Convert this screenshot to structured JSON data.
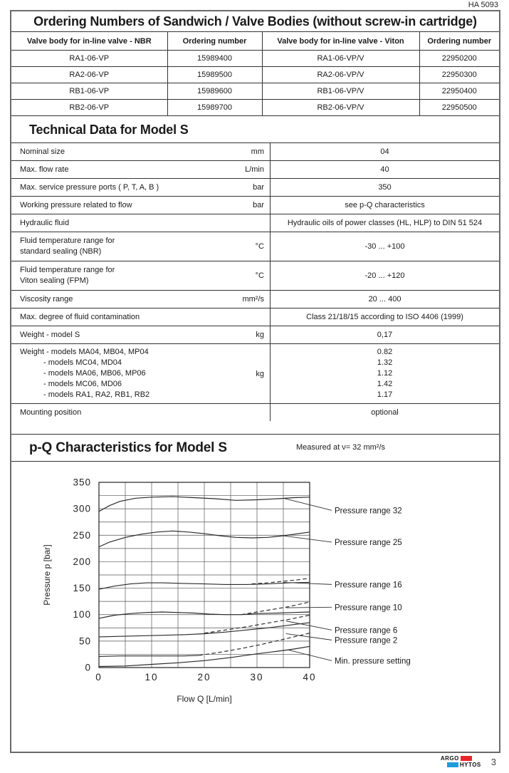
{
  "doc": {
    "number": "HA 5093",
    "page": "3",
    "brand_top": "ARGO",
    "brand_bottom": "HYTOS",
    "brand_red": "#e8262a",
    "brand_blue": "#1e9cd7"
  },
  "ordering": {
    "title": "Ordering Numbers of Sandwich / Valve Bodies (without screw-in cartridge)",
    "columns": [
      "Valve body for in-line valve - NBR",
      "Ordering number",
      "Valve body for in-line valve - Viton",
      "Ordering number"
    ],
    "rows": [
      [
        "RA1-06-VP",
        "15989400",
        "RA1-06-VP/V",
        "22950200"
      ],
      [
        "RA2-06-VP",
        "15989500",
        "RA2-06-VP/V",
        "22950300"
      ],
      [
        "RB1-06-VP",
        "15989600",
        "RB1-06-VP/V",
        "22950400"
      ],
      [
        "RB2-06-VP",
        "15989700",
        "RB2-06-VP/V",
        "22950500"
      ]
    ]
  },
  "technical": {
    "title": "Technical Data for Model S",
    "rows": [
      {
        "lines": [
          "Nominal size"
        ],
        "unit": "mm",
        "values": [
          "04"
        ]
      },
      {
        "lines": [
          "Max. flow rate"
        ],
        "unit": "L/min",
        "values": [
          "40"
        ]
      },
      {
        "lines": [
          "Max. service pressure ports ( P, T, A, B )"
        ],
        "unit": "bar",
        "values": [
          "350"
        ]
      },
      {
        "lines": [
          "Working pressure related to flow"
        ],
        "unit": "bar",
        "values": [
          "see p-Q characteristics"
        ]
      },
      {
        "lines": [
          "Hydraulic fluid"
        ],
        "unit": "",
        "values": [
          "Hydraulic oils of power classes (HL, HLP) to DIN 51 524"
        ]
      },
      {
        "lines": [
          "Fluid temperature range for",
          "standard sealing (NBR)"
        ],
        "unit": "°C",
        "values": [
          "-30 ... +100"
        ]
      },
      {
        "lines": [
          "Fluid temperature range for",
          "Viton sealing (FPM)"
        ],
        "unit": "°C",
        "values": [
          "-20 ... +120"
        ]
      },
      {
        "lines": [
          "Viscosity range"
        ],
        "unit": "mm²/s",
        "values": [
          "20 ... 400"
        ]
      },
      {
        "lines": [
          "Max. degree of fluid contamination"
        ],
        "unit": "",
        "values": [
          "Class 21/18/15 according to ISO 4406 (1999)"
        ]
      },
      {
        "lines": [
          "Weight - model S"
        ],
        "unit": "kg",
        "values": [
          "0,17"
        ]
      },
      {
        "lines": [
          "Weight - models MA04, MB04, MP04",
          "- models MC04, MD04",
          "- models MA06, MB06, MP06",
          "- models MC06, MD06",
          "- models RA1, RA2, RB1, RB2"
        ],
        "unit": "kg",
        "values": [
          "0.82",
          "1.32",
          "1.12",
          "1.42",
          "1.17"
        ]
      },
      {
        "lines": [
          "Mounting position"
        ],
        "unit": "",
        "values": [
          "optional"
        ]
      }
    ]
  },
  "pq": {
    "title": "p-Q Characteristics for Model S",
    "note": "Measured at ν= 32 mm²/s"
  },
  "chart_data": {
    "type": "line",
    "title": "p-Q Characteristics for Model S",
    "note": "Measured at ν= 32 mm²/s",
    "xlabel": "Flow Q [L/min]",
    "ylabel": "Pressure p [bar]",
    "xlim": [
      0,
      40
    ],
    "ylim": [
      0,
      350
    ],
    "x_major_ticks": [
      0,
      10,
      20,
      30,
      40
    ],
    "y_major_ticks": [
      0,
      50,
      100,
      150,
      200,
      250,
      300,
      350
    ],
    "x_minor_step": 5,
    "y_minor_step": 25,
    "grid": true,
    "legend_position": "right-labels-with-leaders",
    "line_color": "#2a2a2a",
    "series": [
      {
        "name": "Pressure range 32",
        "style": "solid",
        "points": [
          [
            0,
            295
          ],
          [
            2,
            306
          ],
          [
            4,
            314
          ],
          [
            7,
            320
          ],
          [
            10,
            322
          ],
          [
            14,
            323
          ],
          [
            18,
            321
          ],
          [
            22,
            319
          ],
          [
            26,
            316
          ],
          [
            30,
            317
          ],
          [
            34,
            319
          ],
          [
            37,
            321
          ],
          [
            40,
            322
          ]
        ]
      },
      {
        "name": "Pressure range 25",
        "style": "solid",
        "points": [
          [
            0,
            228
          ],
          [
            2,
            237
          ],
          [
            5,
            246
          ],
          [
            8,
            252
          ],
          [
            11,
            256
          ],
          [
            14,
            258
          ],
          [
            17,
            256
          ],
          [
            20,
            253
          ],
          [
            23,
            249
          ],
          [
            26,
            246
          ],
          [
            29,
            245
          ],
          [
            32,
            246
          ],
          [
            35,
            249
          ],
          [
            40,
            256
          ]
        ]
      },
      {
        "name": "Pressure range 16",
        "style": "solid",
        "points": [
          [
            0,
            148
          ],
          [
            3,
            154
          ],
          [
            6,
            158
          ],
          [
            9,
            160
          ],
          [
            12,
            160
          ],
          [
            16,
            159
          ],
          [
            20,
            158
          ],
          [
            24,
            157
          ],
          [
            28,
            157
          ],
          [
            32,
            158
          ],
          [
            36,
            160
          ],
          [
            40,
            161
          ]
        ]
      },
      {
        "name": "Pressure range 16 (adjustment)",
        "style": "dashed",
        "points": [
          [
            29,
            158
          ],
          [
            32,
            160
          ],
          [
            35,
            163
          ],
          [
            38,
            166
          ],
          [
            40,
            169
          ]
        ]
      },
      {
        "name": "Pressure range 10",
        "style": "solid",
        "points": [
          [
            0,
            93
          ],
          [
            3,
            99
          ],
          [
            6,
            102
          ],
          [
            9,
            104
          ],
          [
            12,
            105
          ],
          [
            15,
            104
          ],
          [
            18,
            103
          ],
          [
            21,
            101
          ],
          [
            24,
            100
          ],
          [
            27,
            100
          ],
          [
            30,
            102
          ],
          [
            34,
            103
          ],
          [
            37,
            104
          ],
          [
            40,
            105
          ]
        ]
      },
      {
        "name": "Pressure range 10 (adjustment)",
        "style": "dashed",
        "points": [
          [
            27,
            100
          ],
          [
            30,
            105
          ],
          [
            33,
            110
          ],
          [
            36,
            115
          ],
          [
            40,
            124
          ]
        ]
      },
      {
        "name": "Pressure range 6",
        "style": "solid",
        "points": [
          [
            0,
            58
          ],
          [
            4,
            59
          ],
          [
            8,
            60
          ],
          [
            12,
            61
          ],
          [
            16,
            62
          ],
          [
            20,
            64
          ],
          [
            24,
            67
          ],
          [
            28,
            71
          ],
          [
            32,
            75
          ],
          [
            36,
            80
          ],
          [
            40,
            85
          ]
        ]
      },
      {
        "name": "Pressure range 6 (adjustment)",
        "style": "dashed",
        "points": [
          [
            20,
            65
          ],
          [
            24,
            71
          ],
          [
            28,
            77
          ],
          [
            32,
            84
          ],
          [
            36,
            91
          ],
          [
            40,
            99
          ]
        ]
      },
      {
        "name": "Pressure range 2",
        "style": "solid",
        "points": [
          [
            0,
            21
          ],
          [
            4,
            22
          ],
          [
            8,
            22
          ],
          [
            12,
            22
          ],
          [
            16,
            22
          ],
          [
            19,
            23
          ]
        ]
      },
      {
        "name": "Pressure range 2 (adjustment)",
        "style": "dashed",
        "points": [
          [
            19,
            23
          ],
          [
            23,
            29
          ],
          [
            27,
            36
          ],
          [
            31,
            44
          ],
          [
            34,
            51
          ],
          [
            37,
            58
          ],
          [
            40,
            65
          ]
        ]
      },
      {
        "name": "Min. pressure setting",
        "style": "solid",
        "points": [
          [
            0,
            2
          ],
          [
            5,
            3
          ],
          [
            10,
            6
          ],
          [
            15,
            9
          ],
          [
            20,
            13
          ],
          [
            25,
            19
          ],
          [
            30,
            26
          ],
          [
            34,
            31
          ],
          [
            37,
            35
          ],
          [
            40,
            40
          ]
        ]
      }
    ],
    "curve_labels": [
      {
        "text": "Pressure range 32",
        "attach": [
          35,
          320
        ],
        "label_p": 297
      },
      {
        "text": "Pressure range 25",
        "attach": [
          35,
          249
        ],
        "label_p": 237
      },
      {
        "text": "Pressure range 16",
        "attach": [
          35,
          161
        ],
        "label_p": 157
      },
      {
        "text": "Pressure range 10",
        "attach": [
          35.5,
          113
        ],
        "label_p": 114
      },
      {
        "text": "Pressure range 6",
        "attach": [
          35.5,
          88
        ],
        "label_p": 71
      },
      {
        "text": "Pressure range 2",
        "attach": [
          35.5,
          64
        ],
        "label_p": 52
      },
      {
        "text": "Min. pressure setting",
        "attach": [
          36,
          33
        ],
        "label_p": 13
      }
    ]
  }
}
